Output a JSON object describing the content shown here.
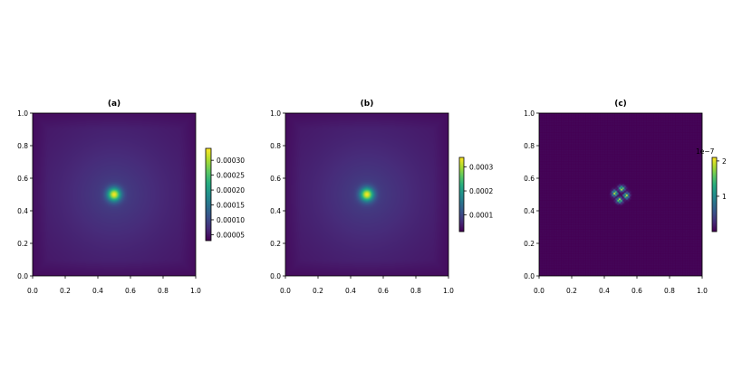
{
  "chart_data": [
    {
      "type": "heatmap",
      "title": "(a)",
      "xlim": [
        0.0,
        1.0
      ],
      "ylim": [
        0.0,
        1.0
      ],
      "xticks": [
        "0.0",
        "0.2",
        "0.4",
        "0.6",
        "0.8",
        "1.0"
      ],
      "yticks": [
        "0.0",
        "0.2",
        "0.4",
        "0.6",
        "0.8",
        "1.0"
      ],
      "colormap": "viridis",
      "peak": {
        "x": 0.5,
        "y": 0.5
      },
      "colorbar": {
        "range": [
          3e-05,
          0.00034
        ],
        "ticks": [
          5e-05,
          0.0001,
          0.00015,
          0.0002,
          0.00025,
          0.0003
        ],
        "tick_labels": [
          "0.00005",
          "0.00010",
          "0.00015",
          "0.00020",
          "0.00025",
          "0.00030"
        ],
        "offset_text": ""
      }
    },
    {
      "type": "heatmap",
      "title": "(b)",
      "xlim": [
        0.0,
        1.0
      ],
      "ylim": [
        0.0,
        1.0
      ],
      "xticks": [
        "0.0",
        "0.2",
        "0.4",
        "0.6",
        "0.8",
        "1.0"
      ],
      "yticks": [
        "0.0",
        "0.2",
        "0.4",
        "0.6",
        "0.8",
        "1.0"
      ],
      "colormap": "viridis",
      "peak": {
        "x": 0.5,
        "y": 0.5
      },
      "colorbar": {
        "range": [
          3e-05,
          0.00034
        ],
        "ticks": [
          0.0001,
          0.0002,
          0.0003
        ],
        "tick_labels": [
          "0.0001",
          "0.0002",
          "0.0003"
        ],
        "offset_text": ""
      }
    },
    {
      "type": "heatmap",
      "title": "(c)",
      "xlim": [
        0.0,
        1.0
      ],
      "ylim": [
        0.0,
        1.0
      ],
      "xticks": [
        "0.0",
        "0.2",
        "0.4",
        "0.6",
        "0.8",
        "1.0"
      ],
      "yticks": [
        "0.0",
        "0.2",
        "0.4",
        "0.6",
        "0.8",
        "1.0"
      ],
      "colormap": "viridis",
      "peak": {
        "x": 0.5,
        "y": 0.5
      },
      "colorbar": {
        "range": [
          0.0,
          2.1
        ],
        "ticks": [
          1,
          2
        ],
        "tick_labels": [
          "1",
          "2"
        ],
        "offset_text": "1e−7"
      }
    }
  ]
}
